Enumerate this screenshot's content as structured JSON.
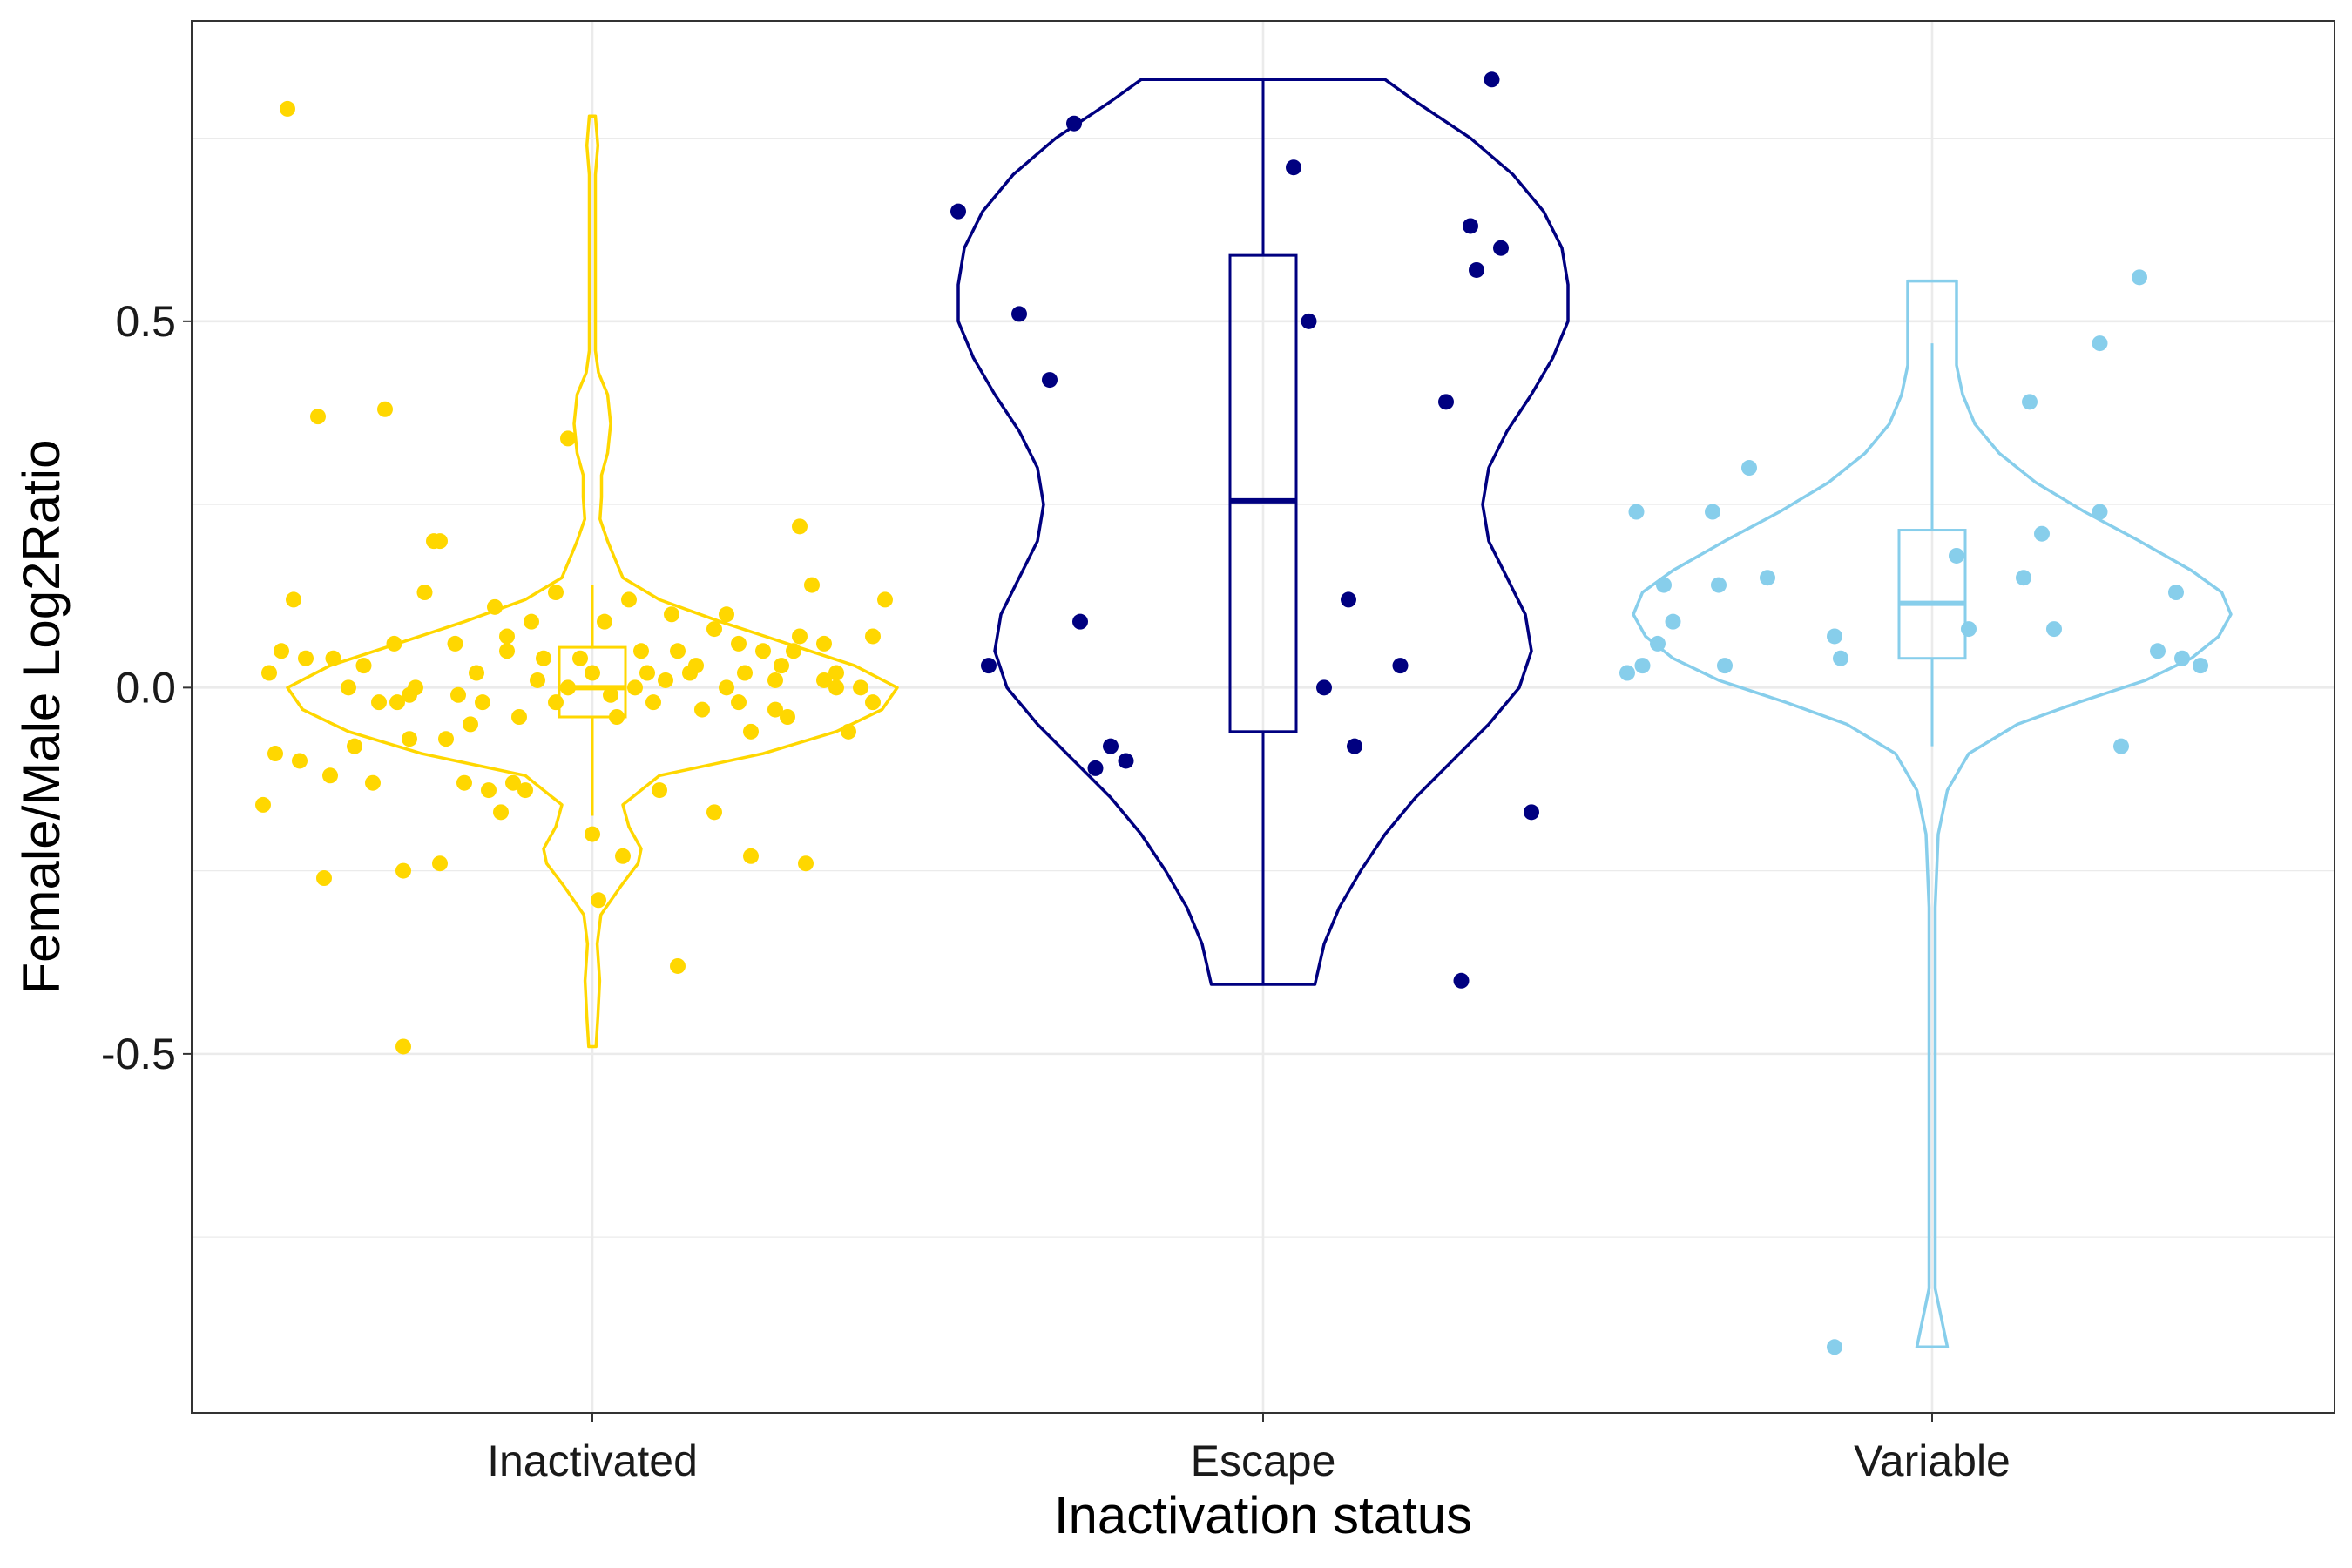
{
  "chart_data": {
    "type": "violin",
    "title": "",
    "xlabel": "Inactivation status",
    "ylabel": "Female/Male Log2Ratio",
    "categories": [
      "Inactivated",
      "Escape",
      "Variable"
    ],
    "ylim": [
      -0.99,
      0.91
    ],
    "y_ticks": [
      -0.5,
      0.0,
      0.5
    ],
    "y_tick_labels": [
      "-0.5",
      "0.0",
      "0.5"
    ],
    "grid": true,
    "legend": "none",
    "colors": {
      "Inactivated": "#FFD700",
      "Escape": "#000080",
      "Variable": "#87CEEB"
    },
    "groups": [
      {
        "name": "Inactivated",
        "box": {
          "min": -0.175,
          "q1": -0.04,
          "median": 0.0,
          "q3": 0.055,
          "max": 0.14
        },
        "violin": [
          [
            -0.49,
            0.012
          ],
          [
            -0.45,
            0.018
          ],
          [
            -0.4,
            0.024
          ],
          [
            -0.35,
            0.016
          ],
          [
            -0.31,
            0.028
          ],
          [
            -0.27,
            0.095
          ],
          [
            -0.24,
            0.15
          ],
          [
            -0.22,
            0.16
          ],
          [
            -0.19,
            0.12
          ],
          [
            -0.16,
            0.1
          ],
          [
            -0.12,
            0.22
          ],
          [
            -0.09,
            0.56
          ],
          [
            -0.06,
            0.8
          ],
          [
            -0.03,
            0.95
          ],
          [
            0.0,
            1.0
          ],
          [
            0.03,
            0.86
          ],
          [
            0.06,
            0.64
          ],
          [
            0.09,
            0.42
          ],
          [
            0.12,
            0.22
          ],
          [
            0.15,
            0.1
          ],
          [
            0.18,
            0.07
          ],
          [
            0.2,
            0.05
          ],
          [
            0.23,
            0.025
          ],
          [
            0.26,
            0.03
          ],
          [
            0.29,
            0.03
          ],
          [
            0.32,
            0.05
          ],
          [
            0.36,
            0.06
          ],
          [
            0.4,
            0.05
          ],
          [
            0.43,
            0.02
          ],
          [
            0.46,
            0.01
          ],
          [
            0.5,
            0.01
          ],
          [
            0.55,
            0.01
          ],
          [
            0.6,
            0.01
          ],
          [
            0.65,
            0.01
          ],
          [
            0.7,
            0.01
          ],
          [
            0.74,
            0.018
          ],
          [
            0.78,
            0.01
          ]
        ],
        "points": [
          [
            -1,
            0.79
          ],
          [
            -0.9,
            0.37
          ],
          [
            -0.98,
            0.12
          ],
          [
            -1.02,
            0.05
          ],
          [
            -1.06,
            0.02
          ],
          [
            -0.94,
            0.04
          ],
          [
            -0.85,
            0.04
          ],
          [
            -0.8,
            0.0
          ],
          [
            -0.75,
            0.03
          ],
          [
            -0.7,
            -0.02
          ],
          [
            -0.65,
            0.06
          ],
          [
            -0.6,
            -0.01
          ],
          [
            -0.55,
            0.13
          ],
          [
            -0.5,
            0.2
          ],
          [
            -0.45,
            0.06
          ],
          [
            -0.4,
            -0.05
          ],
          [
            -0.36,
            -0.02
          ],
          [
            -0.32,
            0.11
          ],
          [
            -0.28,
            0.07
          ],
          [
            -0.24,
            -0.04
          ],
          [
            -0.2,
            0.09
          ],
          [
            -0.16,
            0.04
          ],
          [
            -0.12,
            0.13
          ],
          [
            -0.08,
            0.0
          ],
          [
            -0.04,
            0.04
          ],
          [
            0.0,
            0.02
          ],
          [
            0.04,
            0.09
          ],
          [
            0.08,
            -0.04
          ],
          [
            0.12,
            0.12
          ],
          [
            0.16,
            0.05
          ],
          [
            0.2,
            -0.02
          ],
          [
            0.24,
            0.01
          ],
          [
            0.28,
            0.05
          ],
          [
            0.32,
            0.02
          ],
          [
            0.36,
            -0.03
          ],
          [
            0.4,
            0.08
          ],
          [
            0.44,
            0.1
          ],
          [
            0.48,
            0.06
          ],
          [
            0.52,
            -0.06
          ],
          [
            0.56,
            0.05
          ],
          [
            0.6,
            0.01
          ],
          [
            0.64,
            -0.04
          ],
          [
            0.68,
            0.07
          ],
          [
            0.72,
            0.14
          ],
          [
            0.76,
            0.06
          ],
          [
            0.8,
            0.0
          ],
          [
            0.84,
            -0.06
          ],
          [
            0.88,
            0.0
          ],
          [
            0.92,
            0.07
          ],
          [
            0.96,
            0.12
          ],
          [
            -1.04,
            -0.09
          ],
          [
            -0.96,
            -0.1
          ],
          [
            -0.78,
            -0.08
          ],
          [
            -0.72,
            -0.13
          ],
          [
            -0.6,
            -0.07
          ],
          [
            -0.48,
            -0.07
          ],
          [
            -0.42,
            -0.13
          ],
          [
            -0.34,
            -0.14
          ],
          [
            -0.3,
            -0.17
          ],
          [
            -0.22,
            -0.14
          ],
          [
            0.0,
            -0.2
          ],
          [
            0.22,
            -0.14
          ],
          [
            0.4,
            -0.17
          ],
          [
            0.52,
            -0.23
          ],
          [
            0.7,
            -0.24
          ],
          [
            -0.88,
            -0.26
          ],
          [
            -0.62,
            -0.25
          ],
          [
            -0.5,
            -0.24
          ],
          [
            0.1,
            -0.23
          ],
          [
            0.02,
            -0.29
          ],
          [
            0.28,
            -0.38
          ],
          [
            -0.62,
            -0.49
          ],
          [
            -0.68,
            0.38
          ],
          [
            -0.52,
            0.2
          ],
          [
            -0.08,
            0.34
          ],
          [
            0.68,
            0.22
          ],
          [
            -0.86,
            -0.12
          ],
          [
            -1.08,
            -0.16
          ],
          [
            -0.26,
            -0.13
          ],
          [
            0.48,
            -0.02
          ],
          [
            0.6,
            -0.03
          ],
          [
            0.76,
            0.01
          ],
          [
            0.92,
            -0.02
          ],
          [
            -0.64,
            -0.02
          ],
          [
            -0.58,
            0.0
          ],
          [
            -0.44,
            -0.01
          ],
          [
            -0.38,
            0.02
          ],
          [
            0.14,
            0.0
          ],
          [
            0.18,
            0.02
          ],
          [
            0.34,
            0.03
          ],
          [
            0.44,
            0.0
          ],
          [
            0.5,
            0.02
          ],
          [
            0.62,
            0.03
          ],
          [
            0.66,
            0.05
          ],
          [
            0.8,
            0.02
          ],
          [
            -0.18,
            0.01
          ],
          [
            -0.12,
            -0.02
          ],
          [
            0.06,
            -0.01
          ],
          [
            0.26,
            0.1
          ],
          [
            -0.28,
            0.05
          ]
        ]
      },
      {
        "name": "Escape",
        "box": {
          "min": -0.405,
          "q1": -0.06,
          "median": 0.255,
          "q3": 0.59,
          "max": 0.83
        },
        "violin": [
          [
            -0.405,
            0.17
          ],
          [
            -0.35,
            0.2
          ],
          [
            -0.3,
            0.25
          ],
          [
            -0.25,
            0.32
          ],
          [
            -0.2,
            0.4
          ],
          [
            -0.15,
            0.5
          ],
          [
            -0.1,
            0.62
          ],
          [
            -0.05,
            0.74
          ],
          [
            0.0,
            0.84
          ],
          [
            0.05,
            0.88
          ],
          [
            0.1,
            0.86
          ],
          [
            0.15,
            0.8
          ],
          [
            0.2,
            0.74
          ],
          [
            0.25,
            0.72
          ],
          [
            0.3,
            0.74
          ],
          [
            0.35,
            0.8
          ],
          [
            0.4,
            0.88
          ],
          [
            0.45,
            0.95
          ],
          [
            0.5,
            1.0
          ],
          [
            0.55,
            1.0
          ],
          [
            0.6,
            0.98
          ],
          [
            0.65,
            0.92
          ],
          [
            0.7,
            0.82
          ],
          [
            0.75,
            0.68
          ],
          [
            0.8,
            0.5
          ],
          [
            0.83,
            0.4
          ]
        ],
        "points": [
          [
            -1,
            0.65
          ],
          [
            -0.9,
            0.03
          ],
          [
            -0.8,
            0.51
          ],
          [
            -0.7,
            0.42
          ],
          [
            -0.62,
            0.77
          ],
          [
            -0.55,
            -0.11
          ],
          [
            -0.5,
            -0.08
          ],
          [
            -0.45,
            -0.1
          ],
          [
            -0.6,
            0.09
          ],
          [
            0.1,
            0.71
          ],
          [
            0.15,
            0.5
          ],
          [
            0.2,
            0.0
          ],
          [
            0.28,
            0.12
          ],
          [
            0.3,
            -0.08
          ],
          [
            0.45,
            0.03
          ],
          [
            0.6,
            0.39
          ],
          [
            0.68,
            0.63
          ],
          [
            0.7,
            0.57
          ],
          [
            0.78,
            0.6
          ],
          [
            0.75,
            0.83
          ],
          [
            0.88,
            -0.17
          ],
          [
            0.65,
            -0.4
          ]
        ]
      },
      {
        "name": "Variable",
        "box": {
          "min": -0.08,
          "q1": 0.04,
          "median": 0.115,
          "q3": 0.215,
          "max": 0.47
        },
        "violin": [
          [
            -0.9,
            0.05
          ],
          [
            -0.86,
            0.03
          ],
          [
            -0.82,
            0.01
          ],
          [
            -0.7,
            0.01
          ],
          [
            -0.5,
            0.01
          ],
          [
            -0.3,
            0.01
          ],
          [
            -0.2,
            0.02
          ],
          [
            -0.14,
            0.05
          ],
          [
            -0.09,
            0.12
          ],
          [
            -0.05,
            0.28
          ],
          [
            -0.02,
            0.48
          ],
          [
            0.01,
            0.7
          ],
          [
            0.04,
            0.85
          ],
          [
            0.07,
            0.94
          ],
          [
            0.1,
            0.98
          ],
          [
            0.13,
            0.95
          ],
          [
            0.16,
            0.85
          ],
          [
            0.2,
            0.68
          ],
          [
            0.24,
            0.5
          ],
          [
            0.28,
            0.34
          ],
          [
            0.32,
            0.22
          ],
          [
            0.36,
            0.14
          ],
          [
            0.4,
            0.1
          ],
          [
            0.44,
            0.08
          ],
          [
            0.48,
            0.08
          ],
          [
            0.52,
            0.08
          ],
          [
            0.555,
            0.08
          ]
        ],
        "points": [
          [
            -1,
            0.02
          ],
          [
            -0.97,
            0.24
          ],
          [
            -0.95,
            0.03
          ],
          [
            -0.9,
            0.06
          ],
          [
            -0.88,
            0.14
          ],
          [
            -0.85,
            0.09
          ],
          [
            -0.72,
            0.24
          ],
          [
            -0.7,
            0.14
          ],
          [
            -0.68,
            0.03
          ],
          [
            -0.6,
            0.3
          ],
          [
            -0.54,
            0.15
          ],
          [
            -0.32,
            0.07
          ],
          [
            -0.3,
            0.04
          ],
          [
            0.08,
            0.18
          ],
          [
            0.12,
            0.08
          ],
          [
            0.3,
            0.15
          ],
          [
            0.32,
            0.39
          ],
          [
            0.36,
            0.21
          ],
          [
            0.4,
            0.08
          ],
          [
            0.55,
            0.47
          ],
          [
            0.55,
            0.24
          ],
          [
            0.62,
            -0.08
          ],
          [
            0.68,
            0.56
          ],
          [
            0.74,
            0.05
          ],
          [
            0.8,
            0.13
          ],
          [
            0.82,
            0.04
          ],
          [
            0.88,
            0.03
          ],
          [
            -0.32,
            -0.9
          ]
        ]
      }
    ]
  }
}
